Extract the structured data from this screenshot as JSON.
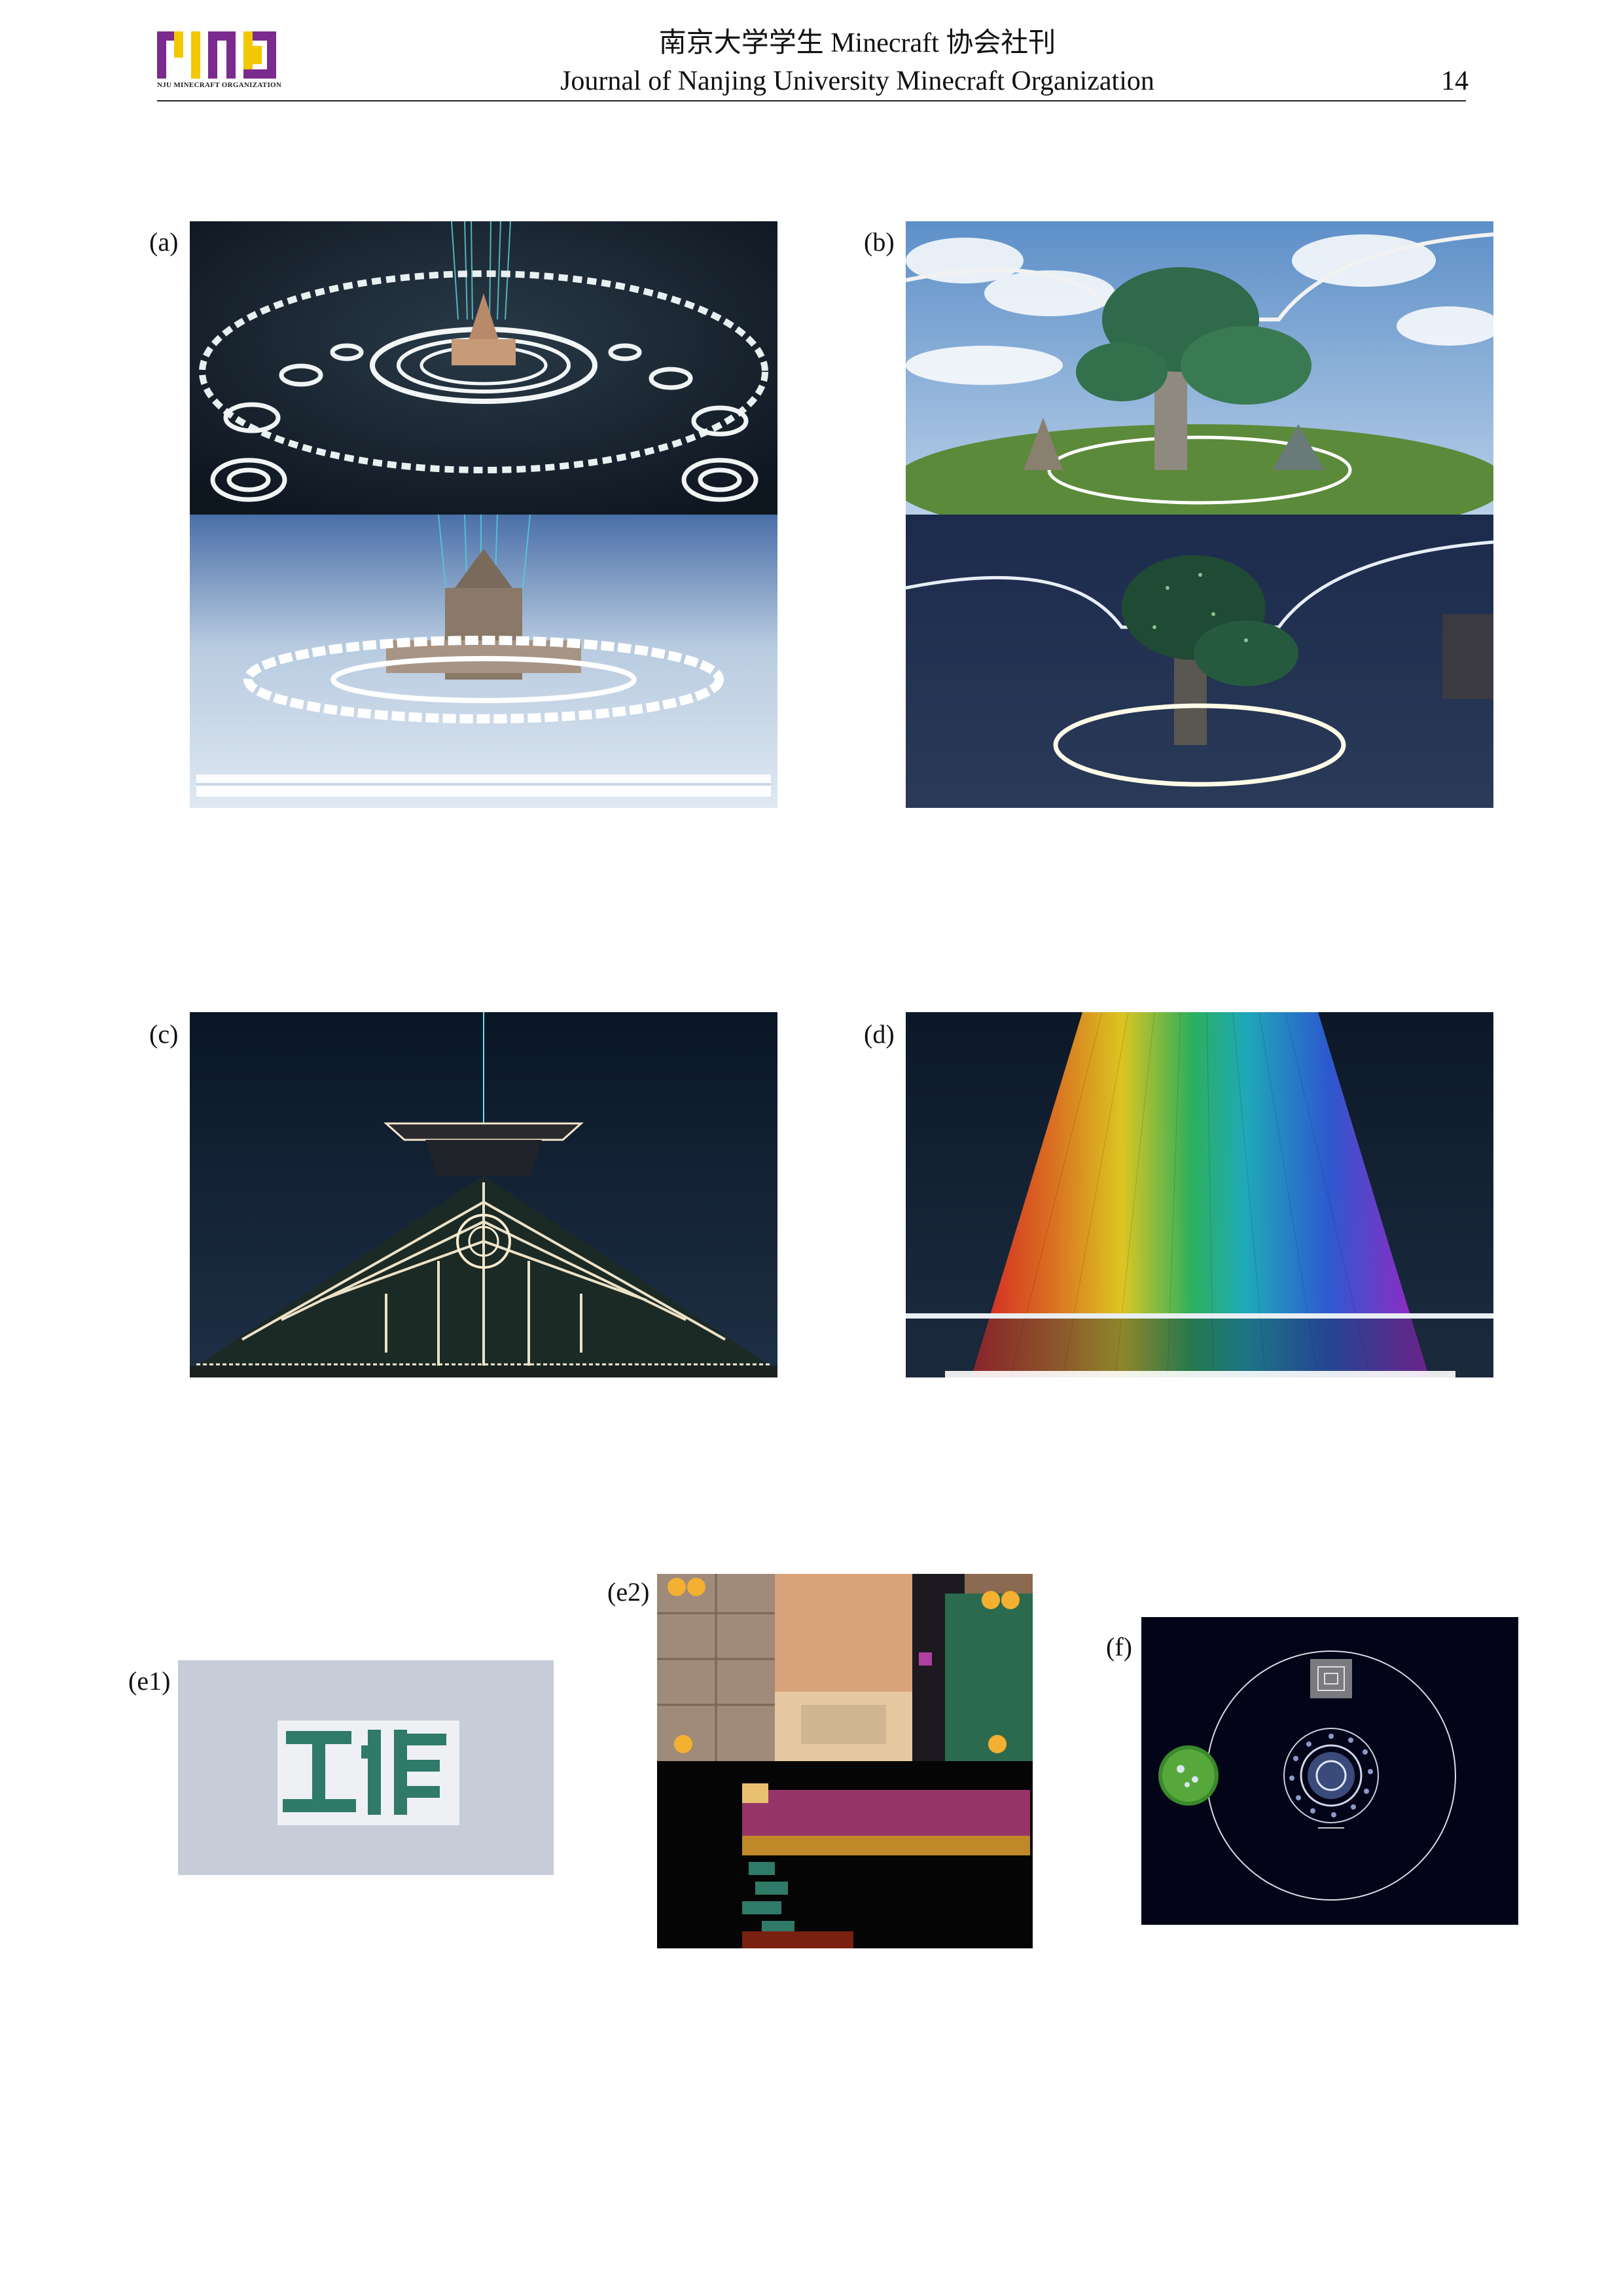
{
  "header": {
    "logo_text": "NJU MINECRAFT ORGANIZATION",
    "title_cn": "南京大学学生 Minecraft 协会社刊",
    "title_en": "Journal of Nanjing University Minecraft Organization",
    "page_number": "14"
  },
  "colors": {
    "logo_purple": "#7b2a8e",
    "logo_yellow": "#f2c800",
    "rule": "#222222"
  },
  "figures": [
    {
      "label": "(a)",
      "description_icon": "dark-temple-and-sky-temple-render"
    },
    {
      "label": "(b)",
      "description_icon": "bonsai-tree-island-render"
    },
    {
      "label": "(c)",
      "description_icon": "illuminated-pyramid-render"
    },
    {
      "label": "(d)",
      "description_icon": "rainbow-beam-render"
    },
    {
      "label": "(e1)",
      "description_icon": "gong-zuo-block-text-render"
    },
    {
      "label": "(e2)",
      "description_icon": "interior-rooms-render"
    },
    {
      "label": "(f)",
      "description_icon": "top-down-map-render"
    }
  ]
}
